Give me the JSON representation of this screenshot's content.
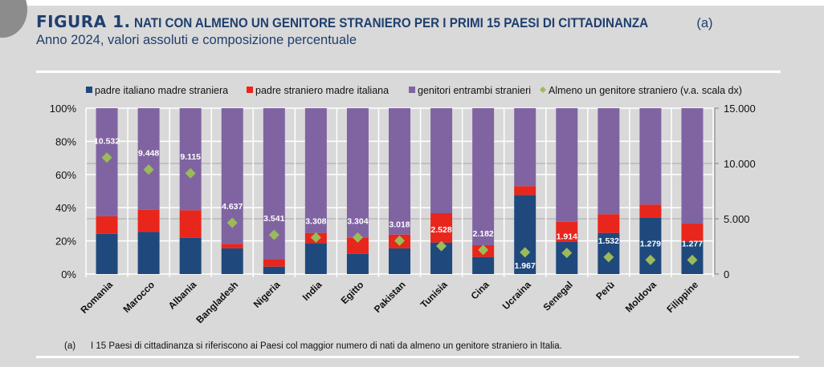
{
  "header": {
    "figure_label": "FIGURA 1.",
    "title": "NATI CON ALMENO UN GENITORE STRANIERO PER I PRIMI 15 PAESI DI CITTADINANZA",
    "title_note": "(a)",
    "subtitle": "Anno 2024, valori assoluti e composizione percentuale"
  },
  "footnote": {
    "tag": "(a)",
    "text": "I 15 Paesi di cittadinanza si riferiscono ai Paesi col maggior numero di nati da almeno un genitore straniero in Italia."
  },
  "colors": {
    "padre_italiano": "#1f497d",
    "padre_straniero": "#e8261c",
    "entrambi_stranieri": "#8064a2",
    "marker": "#9bbb59",
    "background": "#d9d9d9"
  },
  "chart_data": {
    "type": "bar",
    "stacked": "percent",
    "title": "NATI CON ALMENO UN GENITORE STRANIERO PER I PRIMI 15 PAESI DI CITTADINANZA (a)",
    "subtitle": "Anno 2024, valori assoluti e composizione percentuale",
    "categories": [
      "Romania",
      "Marocco",
      "Albania",
      "Bangladesh",
      "Nigeria",
      "India",
      "Egitto",
      "Pakistan",
      "Tunisia",
      "Cina",
      "Ucraina",
      "Senegal",
      "Perù",
      "Moldova",
      "Filippine"
    ],
    "series": [
      {
        "name": "padre italiano madre straniera",
        "axis": "left",
        "unit": "%",
        "values": [
          24.3,
          25.4,
          21.9,
          15.5,
          4.5,
          18.7,
          12.2,
          15.5,
          19.0,
          10.3,
          47.7,
          19.5,
          24.8,
          34.0,
          19.5
        ]
      },
      {
        "name": "padre straniero madre italiana",
        "axis": "left",
        "unit": "%",
        "values": [
          10.5,
          13.4,
          16.6,
          2.7,
          4.5,
          6.1,
          9.7,
          8.3,
          17.7,
          7.1,
          5.3,
          12.0,
          11.3,
          7.9,
          10.9
        ]
      },
      {
        "name": "genitori entrambi stranieri",
        "axis": "left",
        "unit": "%",
        "values": [
          65.2,
          61.2,
          61.5,
          81.8,
          91.0,
          75.2,
          78.1,
          76.2,
          63.3,
          82.6,
          47.0,
          68.5,
          63.9,
          58.1,
          69.6
        ]
      },
      {
        "name": "Almeno un genitore straniero (v.a. scala dx)",
        "axis": "right",
        "type": "scatter",
        "values": [
          10532,
          9448,
          9115,
          4637,
          3541,
          3308,
          3304,
          3018,
          2528,
          2182,
          1967,
          1914,
          1532,
          1279,
          1277
        ]
      }
    ],
    "data_labels": [
      "10.532",
      "9.448",
      "9.115",
      "4.637",
      "3.541",
      "3.308",
      "3.304",
      "3.018",
      "2.528",
      "2.182",
      "1.967",
      "1.914",
      "1.532",
      "1.279",
      "1.277"
    ],
    "y_left": {
      "range": [
        0,
        100
      ],
      "ticks": [
        "0%",
        "20%",
        "40%",
        "60%",
        "80%",
        "100%"
      ]
    },
    "y_right": {
      "range": [
        0,
        15000
      ],
      "ticks": [
        "0",
        "5.000",
        "10.000",
        "15.000"
      ]
    },
    "xlabel": "",
    "ylabel": "",
    "grid": true,
    "legend": "top"
  }
}
